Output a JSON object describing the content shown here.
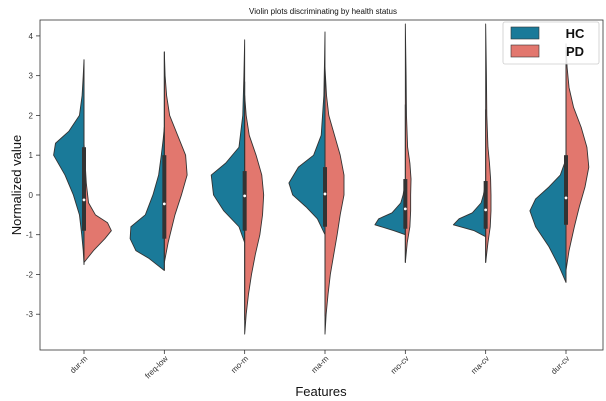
{
  "chart_data": {
    "type": "split-violin",
    "title": "Violin plots discriminating by health status",
    "xlabel": "Features",
    "ylabel": "Normalized value",
    "categories": [
      "dur-m",
      "freq-low",
      "mo-m",
      "ma-m",
      "mo-cv",
      "ma-cv",
      "dur-cv"
    ],
    "ylim": [
      -3.9,
      4.4
    ],
    "yticks": [
      -3,
      -2,
      -1,
      0,
      1,
      2,
      3,
      4
    ],
    "grid": false,
    "legend_position": "top-right",
    "series": [
      {
        "name": "HC",
        "color": "#1a7a99",
        "violins": [
          {
            "min": -1.75,
            "max": 3.4,
            "q1": -0.35,
            "median": 0.45,
            "q3": 1.2,
            "profile": [
              [
                -1.75,
                0.0
              ],
              [
                -1.4,
                0.02
              ],
              [
                -1.0,
                0.06
              ],
              [
                -0.5,
                0.12
              ],
              [
                0.0,
                0.28
              ],
              [
                0.5,
                0.5
              ],
              [
                1.0,
                0.8
              ],
              [
                1.3,
                0.75
              ],
              [
                1.6,
                0.4
              ],
              [
                2.0,
                0.12
              ],
              [
                2.5,
                0.05
              ],
              [
                3.0,
                0.02
              ],
              [
                3.4,
                0.0
              ]
            ]
          },
          {
            "min": -1.9,
            "max": 1.7,
            "q1": -1.1,
            "median": -0.75,
            "q3": 0.3,
            "profile": [
              [
                -1.9,
                0.0
              ],
              [
                -1.6,
                0.4
              ],
              [
                -1.4,
                0.75
              ],
              [
                -1.1,
                0.9
              ],
              [
                -0.8,
                0.88
              ],
              [
                -0.5,
                0.5
              ],
              [
                0.0,
                0.3
              ],
              [
                0.5,
                0.15
              ],
              [
                1.0,
                0.08
              ],
              [
                1.4,
                0.03
              ],
              [
                1.7,
                0.0
              ]
            ]
          },
          {
            "min": -1.2,
            "max": 3.9,
            "q1": -0.4,
            "median": 0.05,
            "q3": 0.55,
            "profile": [
              [
                -1.2,
                0.0
              ],
              [
                -0.8,
                0.15
              ],
              [
                -0.4,
                0.55
              ],
              [
                0.0,
                0.82
              ],
              [
                0.5,
                0.88
              ],
              [
                0.8,
                0.5
              ],
              [
                1.2,
                0.15
              ],
              [
                2.0,
                0.05
              ],
              [
                3.0,
                0.02
              ],
              [
                3.9,
                0.0
              ]
            ]
          },
          {
            "min": -1.0,
            "max": 4.1,
            "q1": -0.3,
            "median": 0.1,
            "q3": 0.55,
            "profile": [
              [
                -1.0,
                0.0
              ],
              [
                -0.6,
                0.2
              ],
              [
                -0.3,
                0.5
              ],
              [
                0.0,
                0.85
              ],
              [
                0.3,
                0.95
              ],
              [
                0.7,
                0.7
              ],
              [
                1.0,
                0.3
              ],
              [
                1.5,
                0.1
              ],
              [
                2.5,
                0.03
              ],
              [
                3.5,
                0.01
              ],
              [
                4.1,
                0.0
              ]
            ]
          },
          {
            "min": -1.0,
            "max": 0.3,
            "q1": -0.85,
            "median": -0.7,
            "q3": -0.5,
            "profile": [
              [
                -1.0,
                0.0
              ],
              [
                -0.9,
                0.3
              ],
              [
                -0.75,
                0.8
              ],
              [
                -0.6,
                0.7
              ],
              [
                -0.45,
                0.35
              ],
              [
                -0.2,
                0.12
              ],
              [
                0.0,
                0.06
              ],
              [
                0.3,
                0.0
              ]
            ]
          },
          {
            "min": -1.05,
            "max": 0.3,
            "q1": -0.85,
            "median": -0.7,
            "q3": -0.5,
            "profile": [
              [
                -1.05,
                0.0
              ],
              [
                -0.9,
                0.3
              ],
              [
                -0.75,
                0.85
              ],
              [
                -0.6,
                0.7
              ],
              [
                -0.45,
                0.35
              ],
              [
                -0.2,
                0.12
              ],
              [
                0.0,
                0.06
              ],
              [
                0.3,
                0.0
              ]
            ]
          },
          {
            "min": -2.2,
            "max": 0.9,
            "q1": -0.75,
            "median": -0.45,
            "q3": -0.1,
            "profile": [
              [
                -2.2,
                0.0
              ],
              [
                -1.8,
                0.18
              ],
              [
                -1.3,
                0.45
              ],
              [
                -0.8,
                0.8
              ],
              [
                -0.4,
                0.95
              ],
              [
                -0.1,
                0.8
              ],
              [
                0.2,
                0.45
              ],
              [
                0.5,
                0.15
              ],
              [
                0.9,
                0.0
              ]
            ]
          }
        ]
      },
      {
        "name": "PD",
        "color": "#e2776e",
        "violins": [
          {
            "min": -1.7,
            "max": 1.3,
            "q1": -0.9,
            "median": -0.7,
            "q3": -0.3,
            "profile": [
              [
                -1.7,
                0.0
              ],
              [
                -1.4,
                0.25
              ],
              [
                -1.1,
                0.55
              ],
              [
                -0.9,
                0.72
              ],
              [
                -0.7,
                0.62
              ],
              [
                -0.5,
                0.3
              ],
              [
                -0.2,
                0.12
              ],
              [
                0.3,
                0.06
              ],
              [
                0.8,
                0.03
              ],
              [
                1.3,
                0.0
              ]
            ]
          },
          {
            "min": -1.7,
            "max": 3.6,
            "q1": -0.3,
            "median": 0.3,
            "q3": 1.0,
            "profile": [
              [
                -1.7,
                0.0
              ],
              [
                -1.2,
                0.1
              ],
              [
                -0.5,
                0.28
              ],
              [
                0.0,
                0.45
              ],
              [
                0.5,
                0.6
              ],
              [
                1.0,
                0.56
              ],
              [
                1.5,
                0.35
              ],
              [
                2.0,
                0.14
              ],
              [
                2.5,
                0.06
              ],
              [
                3.0,
                0.02
              ],
              [
                3.6,
                0.0
              ]
            ]
          },
          {
            "min": -3.5,
            "max": 2.5,
            "q1": -0.9,
            "median": -0.1,
            "q3": 0.6,
            "profile": [
              [
                -3.5,
                0.0
              ],
              [
                -3.0,
                0.04
              ],
              [
                -2.5,
                0.1
              ],
              [
                -2.0,
                0.18
              ],
              [
                -1.5,
                0.28
              ],
              [
                -1.0,
                0.4
              ],
              [
                -0.5,
                0.47
              ],
              [
                0.0,
                0.5
              ],
              [
                0.5,
                0.45
              ],
              [
                1.0,
                0.3
              ],
              [
                1.5,
                0.12
              ],
              [
                2.0,
                0.04
              ],
              [
                2.5,
                0.0
              ]
            ]
          },
          {
            "min": -3.5,
            "max": 3.2,
            "q1": -0.8,
            "median": -0.05,
            "q3": 0.7,
            "profile": [
              [
                -3.5,
                0.0
              ],
              [
                -3.0,
                0.03
              ],
              [
                -2.5,
                0.08
              ],
              [
                -2.0,
                0.14
              ],
              [
                -1.5,
                0.23
              ],
              [
                -1.0,
                0.32
              ],
              [
                -0.5,
                0.4
              ],
              [
                0.0,
                0.5
              ],
              [
                0.5,
                0.5
              ],
              [
                1.0,
                0.4
              ],
              [
                1.5,
                0.25
              ],
              [
                2.0,
                0.1
              ],
              [
                2.5,
                0.04
              ],
              [
                3.2,
                0.0
              ]
            ]
          },
          {
            "min": -1.7,
            "max": 4.3,
            "q1": -0.5,
            "median": 0.0,
            "q3": 0.4,
            "profile": [
              [
                -1.7,
                0.0
              ],
              [
                -1.2,
                0.05
              ],
              [
                -0.8,
                0.12
              ],
              [
                -0.4,
                0.14
              ],
              [
                0.0,
                0.14
              ],
              [
                0.4,
                0.15
              ],
              [
                0.8,
                0.12
              ],
              [
                1.2,
                0.06
              ],
              [
                2.0,
                0.03
              ],
              [
                3.0,
                0.02
              ],
              [
                4.3,
                0.0
              ]
            ]
          },
          {
            "min": -1.7,
            "max": 4.3,
            "q1": -0.55,
            "median": -0.05,
            "q3": 0.35,
            "profile": [
              [
                -1.7,
                0.0
              ],
              [
                -1.2,
                0.06
              ],
              [
                -0.8,
                0.12
              ],
              [
                -0.4,
                0.14
              ],
              [
                0.0,
                0.14
              ],
              [
                0.4,
                0.13
              ],
              [
                0.8,
                0.1
              ],
              [
                1.2,
                0.06
              ],
              [
                2.0,
                0.03
              ],
              [
                3.0,
                0.02
              ],
              [
                4.3,
                0.0
              ]
            ]
          },
          {
            "min": -1.9,
            "max": 3.8,
            "q1": -0.4,
            "median": 0.3,
            "q3": 1.0,
            "profile": [
              [
                -1.9,
                0.0
              ],
              [
                -1.4,
                0.08
              ],
              [
                -0.8,
                0.22
              ],
              [
                -0.3,
                0.35
              ],
              [
                0.2,
                0.5
              ],
              [
                0.7,
                0.6
              ],
              [
                1.2,
                0.55
              ],
              [
                1.7,
                0.4
              ],
              [
                2.2,
                0.2
              ],
              [
                2.7,
                0.08
              ],
              [
                3.2,
                0.03
              ],
              [
                3.8,
                0.0
              ]
            ]
          }
        ]
      }
    ]
  }
}
